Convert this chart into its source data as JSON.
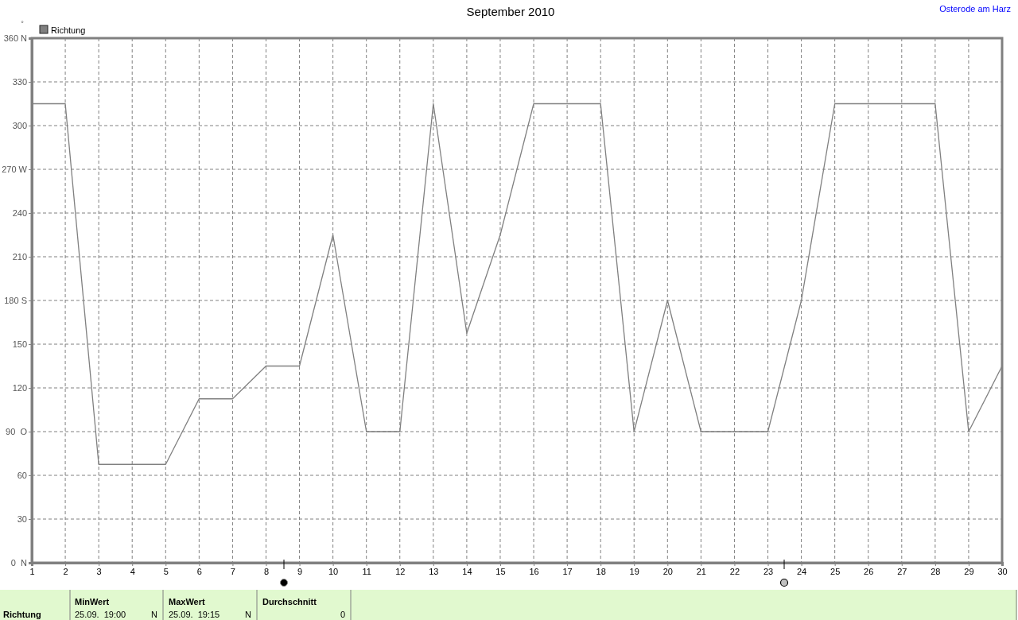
{
  "chart_data": {
    "type": "line",
    "title": "September 2010",
    "ylabel": "°",
    "annotations": [
      "Osterode am Harz",
      "Richtung",
      "MinWert",
      "25.09.  19:00",
      "N",
      "MaxWert",
      "25.09.  19:15",
      "N",
      "Durchschnitt",
      "0"
    ],
    "x": [
      1,
      2,
      3,
      4,
      5,
      6,
      7,
      8,
      9,
      10,
      11,
      12,
      13,
      14,
      15,
      16,
      17,
      18,
      19,
      20,
      21,
      22,
      23,
      24,
      25,
      26,
      27,
      28,
      29,
      30
    ],
    "series": [
      {
        "name": "Richtung",
        "color": "#808080",
        "values": [
          315,
          315,
          67.5,
          67.5,
          67.5,
          112.5,
          112.5,
          135,
          135,
          225,
          90,
          90,
          315,
          157.5,
          225,
          315,
          315,
          315,
          90,
          180,
          90,
          90,
          90,
          180,
          315,
          315,
          315,
          315,
          90,
          135
        ]
      }
    ],
    "xlim": [
      1,
      30
    ],
    "xticks": [
      1,
      2,
      3,
      4,
      5,
      6,
      7,
      8,
      9,
      10,
      11,
      12,
      13,
      14,
      15,
      16,
      17,
      18,
      19,
      20,
      21,
      22,
      23,
      24,
      25,
      26,
      27,
      28,
      29,
      30
    ],
    "ylim": [
      0,
      360
    ],
    "yticks": [
      {
        "value": 0,
        "label": "0  N"
      },
      30,
      60,
      {
        "value": 90,
        "label": "90  O"
      },
      120,
      150,
      {
        "value": 180,
        "label": "180 S"
      },
      210,
      240,
      {
        "value": 270,
        "label": "270 W"
      },
      300,
      330,
      {
        "value": 360,
        "label": "360 N"
      }
    ],
    "grid": true,
    "legend": "top left"
  }
}
